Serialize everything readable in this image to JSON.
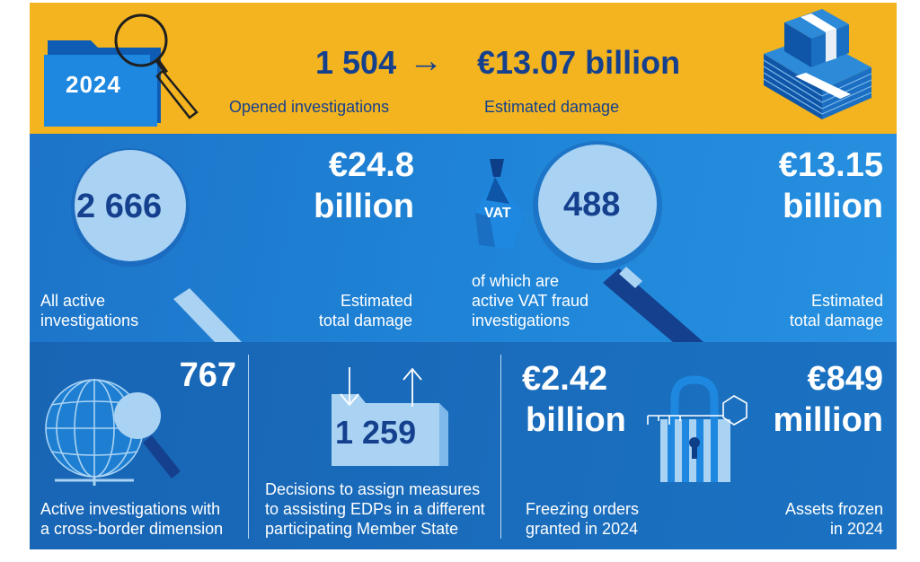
{
  "top": {
    "year": "2024",
    "opened_value": "1 504",
    "arrow": "→",
    "damage_value": "€13.07 billion",
    "opened_label": "Opened investigations",
    "damage_label": "Estimated damage"
  },
  "middle": {
    "active_value": "2 666",
    "active_label_1": "All active",
    "active_label_2": "investigations",
    "total_damage_value_1": "€24.8",
    "total_damage_value_2": "billion",
    "total_damage_label_1": "Estimated",
    "total_damage_label_2": "total damage",
    "vat_tag": "VAT",
    "vat_value": "488",
    "vat_label_1": "of which are",
    "vat_label_2": "active VAT fraud",
    "vat_label_3": "investigations",
    "vat_damage_value_1": "€13.15",
    "vat_damage_value_2": "billion",
    "vat_damage_label_1": "Estimated",
    "vat_damage_label_2": "total damage"
  },
  "bottom": {
    "cross_value": "767",
    "cross_label_1": "Active investigations with",
    "cross_label_2": "a cross-border dimension",
    "decisions_value": "1 259",
    "decisions_label_1": "Decisions to assign measures",
    "decisions_label_2": "to assisting EDPs in a different",
    "decisions_label_3": "participating Member State",
    "freezing_value_1": "€2.42",
    "freezing_value_2": "billion",
    "freezing_label_1": "Freezing orders",
    "freezing_label_2": "granted in 2024",
    "assets_value_1": "€849",
    "assets_value_2": "million",
    "assets_label_1": "Assets frozen",
    "assets_label_2": "in 2024"
  },
  "colors": {
    "yellow": "#f4b41f",
    "navy": "#15408e",
    "blue": "#1f85d8",
    "light_blue": "#a9d2f3",
    "white": "#ffffff"
  },
  "icons": [
    "folder-icon",
    "magnifier-icon",
    "money-stack-icon",
    "vat-tag-icon",
    "globe-icon",
    "file-transfer-icon",
    "padlock-icon",
    "key-icon"
  ]
}
